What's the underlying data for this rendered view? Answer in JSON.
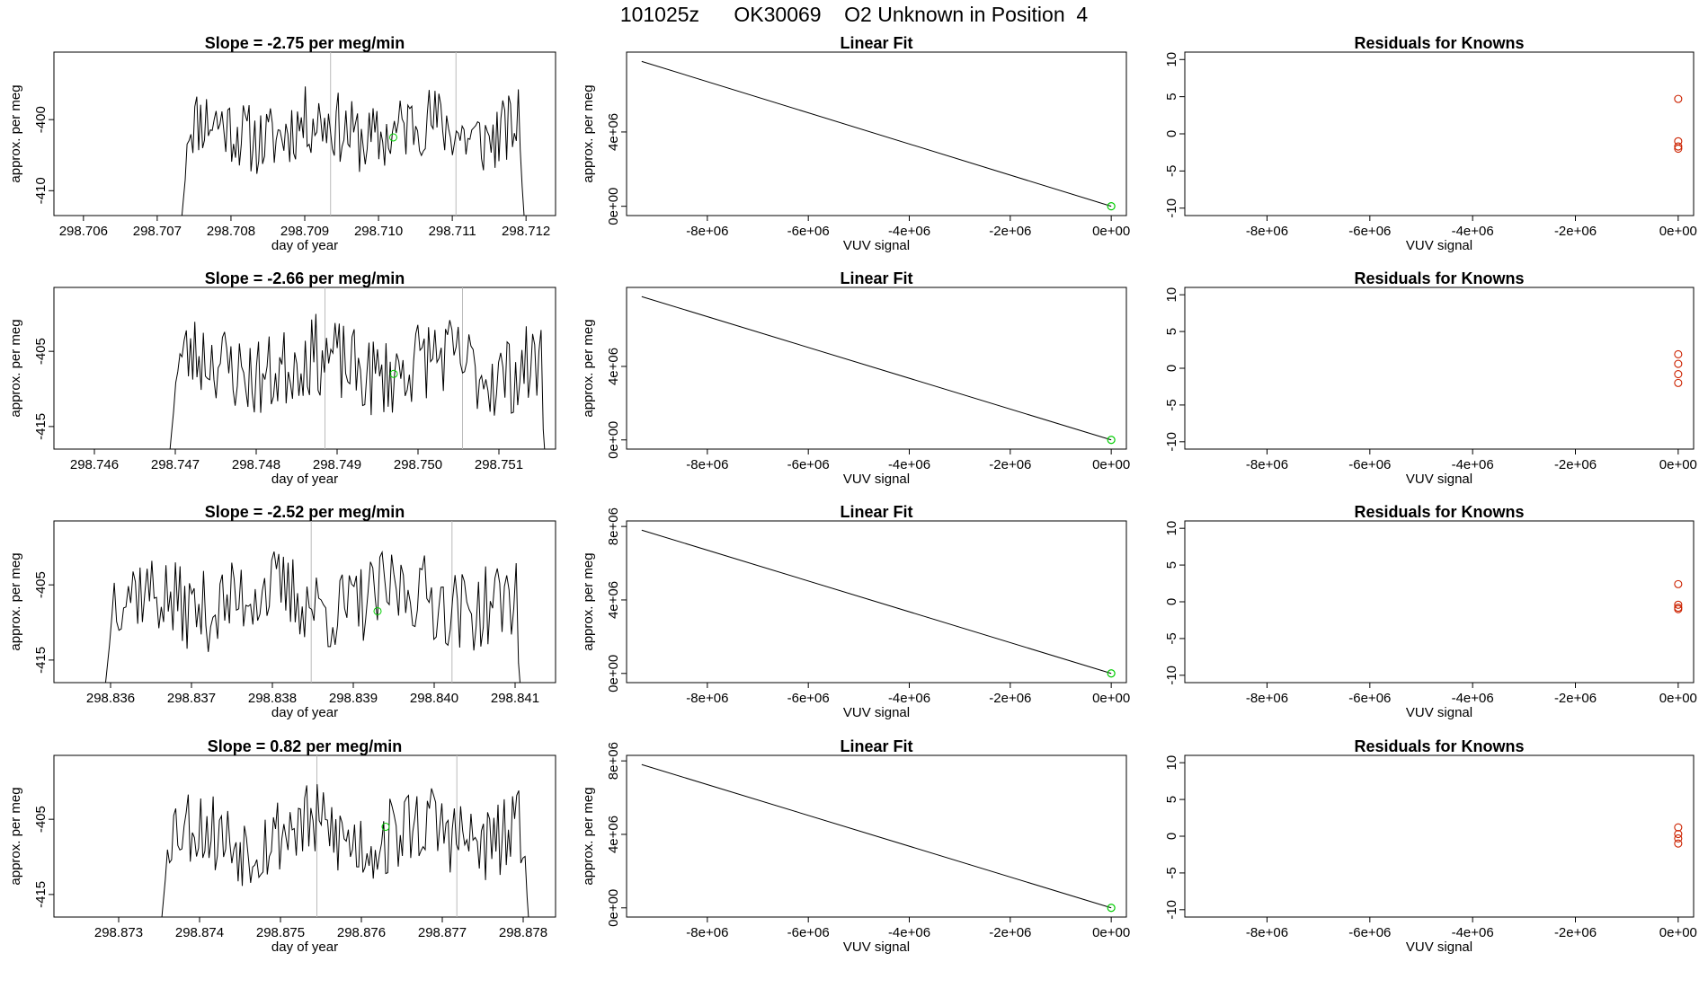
{
  "title": "101025z      OK30069    O2 Unknown in Position  4",
  "colors": {
    "series": "#000000",
    "marker_green": "#00cc00",
    "marker_red": "#cc2200",
    "vline": "#bbbbbb"
  },
  "chart_data": [
    {
      "row": 0,
      "slope_title": "Slope =  -2.75  per meg/min",
      "time_panel": {
        "type": "line",
        "xlabel": "day of year",
        "ylabel": "approx. per meg",
        "xlim": [
          298.7056,
          298.7124
        ],
        "ylim": [
          -413.5,
          -390.5
        ],
        "xticks": [
          298.706,
          298.707,
          298.708,
          298.709,
          298.71,
          298.711,
          298.712
        ],
        "xtick_labels": [
          "298.706",
          "298.707",
          "298.708",
          "298.709",
          "298.710",
          "298.711",
          "298.712"
        ],
        "yticks": [
          -400,
          -410
        ],
        "ytick_labels": [
          "-400",
          "-410"
        ],
        "x_start": 298.7073,
        "x_end": 298.712,
        "n_points": 180,
        "center": -401.5,
        "amp": 5,
        "seed": 11,
        "vlines": [
          298.70935,
          298.71105
        ],
        "green_point": [
          298.7102,
          -402.5
        ]
      },
      "fit_panel": {
        "type": "line",
        "title": "Linear Fit",
        "xlabel": "VUV signal",
        "ylabel": "approx. per meg",
        "xlim": [
          -9600000,
          300000
        ],
        "ylim": [
          -500000,
          8300000
        ],
        "xticks": [
          -8000000,
          -6000000,
          -4000000,
          -2000000,
          0
        ],
        "xtick_labels": [
          "-8e+06",
          "-6e+06",
          "-4e+06",
          "-2e+06",
          "0e+00"
        ],
        "yticks": [
          0,
          4000000
        ],
        "ytick_labels": [
          "0e+00",
          "4e+06"
        ],
        "line": [
          [
            -9300000,
            7800000
          ],
          [
            0,
            0
          ]
        ],
        "point": [
          0,
          0
        ]
      },
      "resid_panel": {
        "type": "scatter",
        "title": "Residuals for Knowns",
        "xlabel": "VUV signal",
        "xlim": [
          -9600000,
          300000
        ],
        "ylim": [
          -11,
          11
        ],
        "xticks": [
          -8000000,
          -6000000,
          -4000000,
          -2000000,
          0
        ],
        "xtick_labels": [
          "-8e+06",
          "-6e+06",
          "-4e+06",
          "-2e+06",
          "0e+00"
        ],
        "yticks": [
          -10,
          -5,
          0,
          5,
          10
        ],
        "ytick_labels": [
          "-10",
          "-5",
          "0",
          "5",
          "10"
        ],
        "points": [
          [
            0,
            4.7
          ],
          [
            0,
            -1.0
          ],
          [
            0,
            -1.7
          ],
          [
            0,
            -2.0
          ]
        ]
      }
    },
    {
      "row": 1,
      "slope_title": "Slope =  -2.66  per meg/min",
      "time_panel": {
        "type": "line",
        "xlabel": "day of year",
        "ylabel": "approx. per meg",
        "xlim": [
          298.7455,
          298.7517
        ],
        "ylim": [
          -418,
          -396.5
        ],
        "xticks": [
          298.746,
          298.747,
          298.748,
          298.749,
          298.75,
          298.751
        ],
        "xtick_labels": [
          "298.746",
          "298.747",
          "298.748",
          "298.749",
          "298.750",
          "298.751"
        ],
        "yticks": [
          -405,
          -415
        ],
        "ytick_labels": [
          "-405",
          "-415"
        ],
        "x_start": 298.7469,
        "x_end": 298.7516,
        "n_points": 180,
        "center": -407,
        "amp": 5.5,
        "seed": 23,
        "vlines": [
          298.74885,
          298.75055
        ],
        "green_point": [
          298.7497,
          -408
        ]
      },
      "fit_panel": {
        "type": "line",
        "title": "Linear Fit",
        "xlabel": "VUV signal",
        "ylabel": "approx. per meg",
        "xlim": [
          -9600000,
          300000
        ],
        "ylim": [
          -500000,
          8300000
        ],
        "xticks": [
          -8000000,
          -6000000,
          -4000000,
          -2000000,
          0
        ],
        "xtick_labels": [
          "-8e+06",
          "-6e+06",
          "-4e+06",
          "-2e+06",
          "0e+00"
        ],
        "yticks": [
          0,
          4000000
        ],
        "ytick_labels": [
          "0e+00",
          "4e+06"
        ],
        "line": [
          [
            -9300000,
            7800000
          ],
          [
            0,
            0
          ]
        ],
        "point": [
          0,
          0
        ]
      },
      "resid_panel": {
        "type": "scatter",
        "title": "Residuals for Knowns",
        "xlabel": "VUV signal",
        "xlim": [
          -9600000,
          300000
        ],
        "ylim": [
          -11,
          11
        ],
        "xticks": [
          -8000000,
          -6000000,
          -4000000,
          -2000000,
          0
        ],
        "xtick_labels": [
          "-8e+06",
          "-6e+06",
          "-4e+06",
          "-2e+06",
          "0e+00"
        ],
        "yticks": [
          -10,
          -5,
          0,
          5,
          10
        ],
        "ytick_labels": [
          "-10",
          "-5",
          "0",
          "5",
          "10"
        ],
        "points": [
          [
            0,
            1.9
          ],
          [
            0,
            0.6
          ],
          [
            0,
            -0.8
          ],
          [
            0,
            -2.0
          ]
        ]
      }
    },
    {
      "row": 2,
      "slope_title": "Slope =  -2.52  per meg/min",
      "time_panel": {
        "type": "line",
        "xlabel": "day of year",
        "ylabel": "approx. per meg",
        "xlim": [
          298.8353,
          298.8415
        ],
        "ylim": [
          -418,
          -396.5
        ],
        "xticks": [
          298.836,
          298.837,
          298.838,
          298.839,
          298.84,
          298.841
        ],
        "xtick_labels": [
          "298.836",
          "298.837",
          "298.838",
          "298.839",
          "298.840",
          "298.841"
        ],
        "yticks": [
          -405,
          -415
        ],
        "ytick_labels": [
          "-405",
          "-415"
        ],
        "x_start": 298.8359,
        "x_end": 298.8411,
        "n_points": 180,
        "center": -407,
        "amp": 5.5,
        "seed": 37,
        "vlines": [
          298.83848,
          298.84022
        ],
        "green_point": [
          298.8393,
          -408.5
        ]
      },
      "fit_panel": {
        "type": "line",
        "title": "Linear Fit",
        "xlabel": "VUV signal",
        "ylabel": "approx. per meg",
        "xlim": [
          -9600000,
          300000
        ],
        "ylim": [
          -500000,
          8300000
        ],
        "xticks": [
          -8000000,
          -6000000,
          -4000000,
          -2000000,
          0
        ],
        "xtick_labels": [
          "-8e+06",
          "-6e+06",
          "-4e+06",
          "-2e+06",
          "0e+00"
        ],
        "yticks": [
          0,
          4000000,
          8000000
        ],
        "ytick_labels": [
          "0e+00",
          "4e+06",
          "8e+06"
        ],
        "line": [
          [
            -9300000,
            7800000
          ],
          [
            0,
            0
          ]
        ],
        "point": [
          0,
          0
        ]
      },
      "resid_panel": {
        "type": "scatter",
        "title": "Residuals for Knowns",
        "xlabel": "VUV signal",
        "xlim": [
          -9600000,
          300000
        ],
        "ylim": [
          -11,
          11
        ],
        "xticks": [
          -8000000,
          -6000000,
          -4000000,
          -2000000,
          0
        ],
        "xtick_labels": [
          "-8e+06",
          "-6e+06",
          "-4e+06",
          "-2e+06",
          "0e+00"
        ],
        "yticks": [
          -10,
          -5,
          0,
          5,
          10
        ],
        "ytick_labels": [
          "-10",
          "-5",
          "0",
          "5",
          "10"
        ],
        "points": [
          [
            0,
            2.4
          ],
          [
            0,
            -0.4
          ],
          [
            0,
            -0.8
          ],
          [
            0,
            -1.0
          ]
        ]
      }
    },
    {
      "row": 3,
      "slope_title": "Slope =  0.82  per meg/min",
      "time_panel": {
        "type": "line",
        "xlabel": "day of year",
        "ylabel": "approx. per meg",
        "xlim": [
          298.8722,
          298.8784
        ],
        "ylim": [
          -418,
          -396.5
        ],
        "xticks": [
          298.873,
          298.874,
          298.875,
          298.876,
          298.877,
          298.878
        ],
        "xtick_labels": [
          "298.873",
          "298.874",
          "298.875",
          "298.876",
          "298.877",
          "298.878"
        ],
        "yticks": [
          -405,
          -415
        ],
        "ytick_labels": [
          "-405",
          "-415"
        ],
        "x_start": 298.8735,
        "x_end": 298.8781,
        "n_points": 180,
        "center": -407,
        "amp": 5.5,
        "seed": 53,
        "vlines": [
          298.87545,
          298.87718
        ],
        "green_point": [
          298.8763,
          -406
        ]
      },
      "fit_panel": {
        "type": "line",
        "title": "Linear Fit",
        "xlabel": "VUV signal",
        "ylabel": "approx. per meg",
        "xlim": [
          -9600000,
          300000
        ],
        "ylim": [
          -500000,
          8300000
        ],
        "xticks": [
          -8000000,
          -6000000,
          -4000000,
          -2000000,
          0
        ],
        "xtick_labels": [
          "-8e+06",
          "-6e+06",
          "-4e+06",
          "-2e+06",
          "0e+00"
        ],
        "yticks": [
          0,
          4000000,
          8000000
        ],
        "ytick_labels": [
          "0e+00",
          "4e+06",
          "8e+06"
        ],
        "line": [
          [
            -9300000,
            7800000
          ],
          [
            0,
            0
          ]
        ],
        "point": [
          0,
          0
        ]
      },
      "resid_panel": {
        "type": "scatter",
        "title": "Residuals for Knowns",
        "xlabel": "VUV signal",
        "xlim": [
          -9600000,
          300000
        ],
        "ylim": [
          -11,
          11
        ],
        "xticks": [
          -8000000,
          -6000000,
          -4000000,
          -2000000,
          0
        ],
        "xtick_labels": [
          "-8e+06",
          "-6e+06",
          "-4e+06",
          "-2e+06",
          "0e+00"
        ],
        "yticks": [
          -10,
          -5,
          0,
          5,
          10
        ],
        "ytick_labels": [
          "-10",
          "-5",
          "0",
          "5",
          "10"
        ],
        "points": [
          [
            0,
            1.2
          ],
          [
            0,
            0.3
          ],
          [
            0,
            -0.3
          ],
          [
            0,
            -1.0
          ]
        ]
      }
    }
  ]
}
